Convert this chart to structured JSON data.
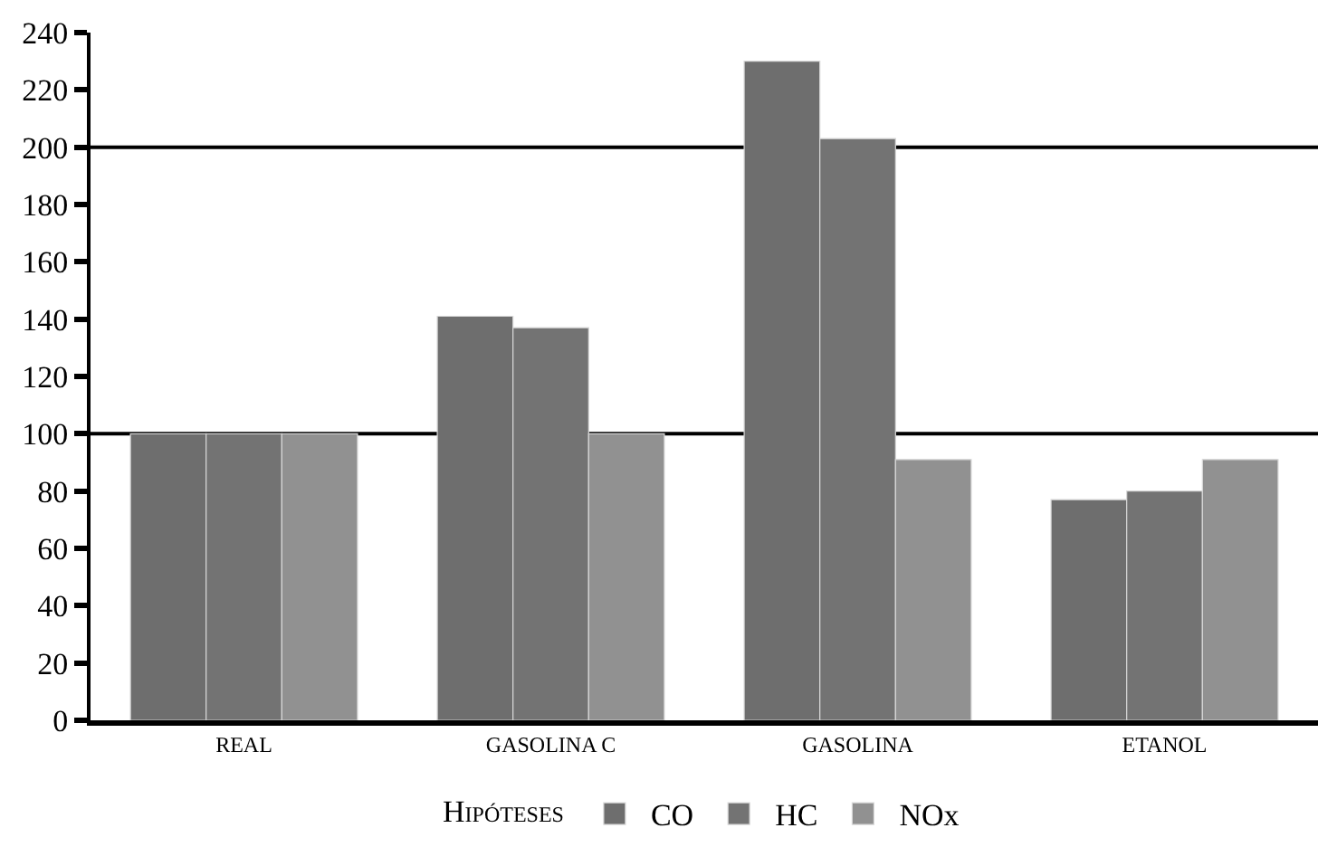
{
  "chart_data": {
    "type": "bar",
    "categories": [
      "REAL",
      "GASOLINA C",
      "GASOLINA",
      "ETANOL"
    ],
    "series": [
      {
        "name": "CO",
        "color": "#6e6e6e",
        "values": [
          100,
          141,
          230,
          77
        ]
      },
      {
        "name": "HC",
        "color": "#737373",
        "values": [
          100,
          137,
          203,
          80
        ]
      },
      {
        "name": "NOx",
        "color": "#919191",
        "values": [
          100,
          100,
          91,
          91
        ]
      }
    ],
    "legend_title": "Hipóteses",
    "legend": "bottom",
    "grid": false,
    "ylim": [
      0,
      240
    ],
    "yticks": [
      0,
      20,
      40,
      60,
      80,
      100,
      120,
      140,
      160,
      180,
      200,
      220,
      240
    ],
    "ref_lines": [
      {
        "axis": "y",
        "value": 100,
        "color": "#000000"
      },
      {
        "axis": "y",
        "value": 200,
        "color": "#000000"
      }
    ]
  }
}
